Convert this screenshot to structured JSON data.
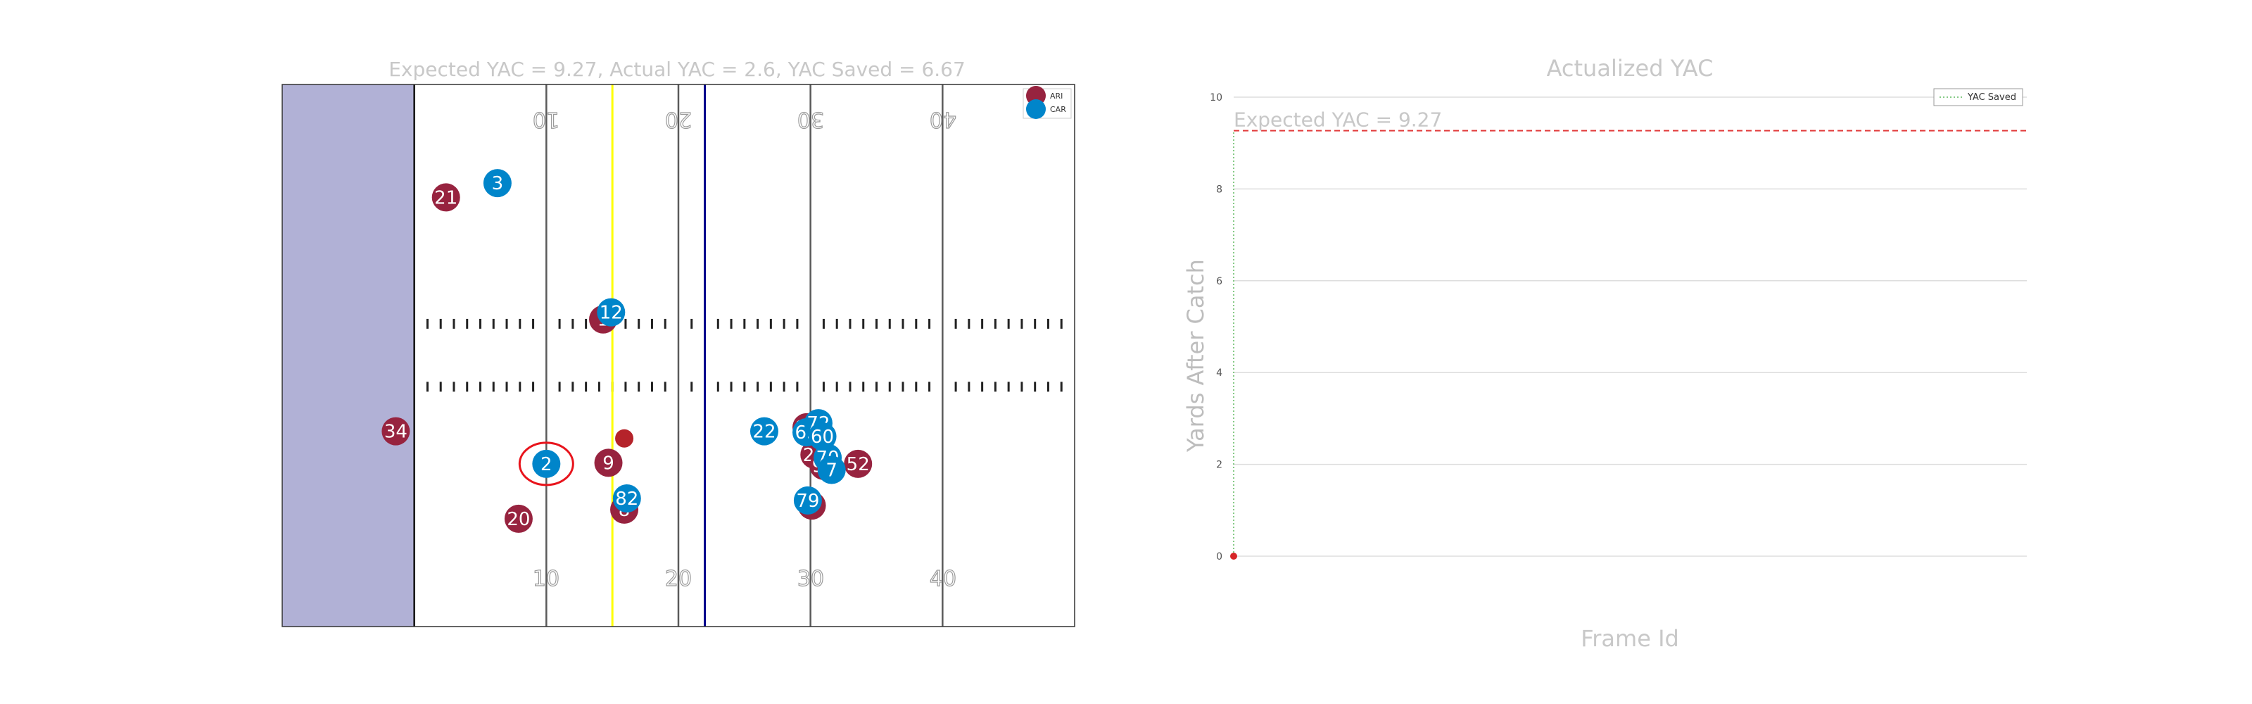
{
  "field_chart": {
    "title": "Expected YAC = 9.27, Actual YAC = 2.6, YAC Saved = 6.67",
    "colors": {
      "endzone": "#b1b1d6",
      "away": "#97233f",
      "home": "#0085ca",
      "los": "#ffff00",
      "first_down": "#00008b",
      "ring": "#e8141c",
      "ball": "#b5232a",
      "yard_line": "#5a5a5a",
      "hash": "#222222"
    },
    "field_numbers_top": [
      "10",
      "20",
      "30",
      "40"
    ],
    "field_numbers_bottom": [
      "10",
      "20",
      "30",
      "40"
    ],
    "legend": [
      {
        "label": "ARI",
        "team": "away"
      },
      {
        "label": "CAR",
        "team": "home"
      }
    ]
  },
  "yac_chart": {
    "title": "Actualized YAC",
    "xlabel": "Frame Id",
    "ylabel": "Yards After Catch",
    "yticks": [
      "0",
      "2",
      "4",
      "6",
      "8",
      "10"
    ],
    "expected_label": "Expected YAC = 9.27",
    "legend_label": "YAC Saved",
    "colors": {
      "expected": "#e23b3b",
      "saved": "#5fb85f",
      "point": "#d62728",
      "grid": "#dddddd"
    }
  },
  "chart_data": [
    {
      "type": "scatter",
      "title": "Expected YAC = 9.27, Actual YAC = 2.6, YAC Saved = 6.67",
      "xlim": [
        0,
        60
      ],
      "ylim": [
        0,
        53.3
      ],
      "line_of_scrimmage": 25,
      "first_down_line": 32,
      "ball": {
        "x": 25.9,
        "y": 18.5
      },
      "ball_carrier": {
        "team": "CAR",
        "number": "2",
        "x": 20,
        "y": 16
      },
      "series": [
        {
          "name": "ARI",
          "team": "away",
          "points": [
            {
              "number": "21",
              "x": 12.4,
              "y": 42.2
            },
            {
              "number": "1",
              "x": 24.3,
              "y": 30.2
            },
            {
              "number": "34",
              "x": 8.6,
              "y": 19.2
            },
            {
              "number": "9",
              "x": 24.7,
              "y": 16.1
            },
            {
              "number": "20",
              "x": 17.9,
              "y": 10.6
            },
            {
              "number": "8",
              "x": 25.9,
              "y": 11.5
            },
            {
              "number": "97",
              "x": 39.7,
              "y": 19.6
            },
            {
              "number": "25",
              "x": 40.3,
              "y": 16.9
            },
            {
              "number": "95",
              "x": 41.0,
              "y": 15.8
            },
            {
              "number": "52",
              "x": 43.6,
              "y": 16.0
            },
            {
              "number": "4",
              "x": 40.1,
              "y": 11.9
            }
          ]
        },
        {
          "name": "CAR",
          "team": "home",
          "points": [
            {
              "number": "3",
              "x": 16.3,
              "y": 43.6
            },
            {
              "number": "12",
              "x": 24.9,
              "y": 30.9
            },
            {
              "number": "82",
              "x": 26.1,
              "y": 12.6
            },
            {
              "number": "22",
              "x": 36.5,
              "y": 19.2
            },
            {
              "number": "63",
              "x": 39.7,
              "y": 19.1
            },
            {
              "number": "72",
              "x": 40.6,
              "y": 20.0
            },
            {
              "number": "60",
              "x": 40.9,
              "y": 18.7
            },
            {
              "number": "70",
              "x": 41.3,
              "y": 16.6
            },
            {
              "number": "7",
              "x": 41.6,
              "y": 15.4
            },
            {
              "number": "79",
              "x": 39.8,
              "y": 12.4
            }
          ]
        }
      ]
    },
    {
      "type": "line",
      "title": "Actualized YAC",
      "xlabel": "Frame Id",
      "ylabel": "Yards After Catch",
      "ylim": [
        0,
        10
      ],
      "expected_yac": 9.27,
      "points": [
        {
          "x": 0,
          "y": 0
        }
      ],
      "yac_saved": {
        "from": 0,
        "to": 9.27
      },
      "grid": true,
      "legend": "top-right"
    }
  ]
}
